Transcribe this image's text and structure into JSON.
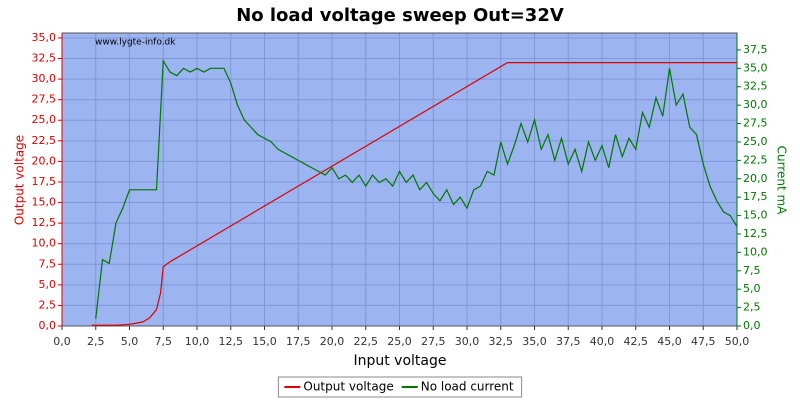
{
  "chart_data": {
    "type": "line",
    "title": "No load voltage sweep Out=32V",
    "watermark": "www.lygte-info.dk",
    "x_label": "Input voltage",
    "y_label": "Output voltage",
    "y2_label": "Current mA",
    "xlim": [
      0,
      50
    ],
    "ylim": [
      0,
      35.6
    ],
    "y2lim": [
      0,
      39.8
    ],
    "grid": true,
    "legend": "bottom",
    "xticks": [
      {
        "value": 0,
        "label": "0,0"
      },
      {
        "value": 2.5,
        "label": "2,5"
      },
      {
        "value": 5,
        "label": "5,0"
      },
      {
        "value": 7.5,
        "label": "7,5"
      },
      {
        "value": 10,
        "label": "10,0"
      },
      {
        "value": 12.5,
        "label": "12,5"
      },
      {
        "value": 15,
        "label": "15,0"
      },
      {
        "value": 17.5,
        "label": "17,5"
      },
      {
        "value": 20,
        "label": "20,0"
      },
      {
        "value": 22.5,
        "label": "22,5"
      },
      {
        "value": 25,
        "label": "25,0"
      },
      {
        "value": 27.5,
        "label": "27,5"
      },
      {
        "value": 30,
        "label": "30,0"
      },
      {
        "value": 32.5,
        "label": "32,5"
      },
      {
        "value": 35,
        "label": "35,0"
      },
      {
        "value": 37.5,
        "label": "37,5"
      },
      {
        "value": 40,
        "label": "40,0"
      },
      {
        "value": 42.5,
        "label": "42,5"
      },
      {
        "value": 45,
        "label": "45,0"
      },
      {
        "value": 47.5,
        "label": "47,5"
      },
      {
        "value": 50,
        "label": "50,0"
      }
    ],
    "yticks": [
      {
        "value": 0,
        "label": "0,0"
      },
      {
        "value": 2.5,
        "label": "2,5"
      },
      {
        "value": 5,
        "label": "5,0"
      },
      {
        "value": 7.5,
        "label": "7,5"
      },
      {
        "value": 10,
        "label": "10,0"
      },
      {
        "value": 12.5,
        "label": "12,5"
      },
      {
        "value": 15,
        "label": "15,0"
      },
      {
        "value": 17.5,
        "label": "17,5"
      },
      {
        "value": 20,
        "label": "20,0"
      },
      {
        "value": 22.5,
        "label": "22,5"
      },
      {
        "value": 25,
        "label": "25,0"
      },
      {
        "value": 27.5,
        "label": "27,5"
      },
      {
        "value": 30,
        "label": "30,0"
      },
      {
        "value": 32.5,
        "label": "32,5"
      },
      {
        "value": 35,
        "label": "35,0"
      }
    ],
    "y2ticks": [
      {
        "value": 0,
        "label": "0,0"
      },
      {
        "value": 2.5,
        "label": "2,5"
      },
      {
        "value": 5,
        "label": "5,0"
      },
      {
        "value": 7.5,
        "label": "7,5"
      },
      {
        "value": 10,
        "label": "10,0"
      },
      {
        "value": 12.5,
        "label": "12,5"
      },
      {
        "value": 15,
        "label": "15,0"
      },
      {
        "value": 17.5,
        "label": "17,5"
      },
      {
        "value": 20,
        "label": "20,0"
      },
      {
        "value": 22.5,
        "label": "22,5"
      },
      {
        "value": 25,
        "label": "25,0"
      },
      {
        "value": 27.5,
        "label": "27,5"
      },
      {
        "value": 30,
        "label": "30,0"
      },
      {
        "value": 32.5,
        "label": "32,5"
      },
      {
        "value": 35,
        "label": "35,0"
      },
      {
        "value": 37.5,
        "label": "37,5"
      }
    ],
    "series": [
      {
        "name": "Output voltage",
        "color": "#dd0000",
        "x": [
          2.2,
          4,
          5,
          6,
          6.5,
          7,
          7.3,
          7.5,
          8,
          33,
          50
        ],
        "values": [
          0.1,
          0.1,
          0.2,
          0.5,
          1,
          2,
          4,
          7.2,
          7.8,
          32,
          32
        ]
      },
      {
        "name": "No load current",
        "color": "#007700",
        "axis": "y2",
        "x": [
          2.5,
          3,
          3.5,
          4,
          4.5,
          5,
          5.5,
          6,
          6.5,
          7,
          7.5,
          8,
          8.5,
          9,
          9.5,
          10,
          10.5,
          11,
          11.5,
          12,
          12.5,
          13,
          13.5,
          14,
          14.5,
          15,
          15.5,
          16,
          16.5,
          17,
          17.5,
          18,
          18.5,
          19,
          19.5,
          20,
          20.5,
          21,
          21.5,
          22,
          22.5,
          23,
          23.5,
          24,
          24.5,
          25,
          25.5,
          26,
          26.5,
          27,
          27.5,
          28,
          28.5,
          29,
          29.5,
          30,
          30.5,
          31,
          31.5,
          32,
          32.5,
          33,
          33.5,
          34,
          34.5,
          35,
          35.5,
          36,
          36.5,
          37,
          37.5,
          38,
          38.5,
          39,
          39.5,
          40,
          40.5,
          41,
          41.5,
          42,
          42.5,
          43,
          43.5,
          44,
          44.5,
          45,
          45.5,
          46,
          46.5,
          47,
          47.5,
          48,
          48.5,
          49,
          49.5,
          50
        ],
        "values": [
          1.0,
          9.0,
          8.5,
          14.0,
          16.0,
          18.5,
          18.5,
          18.5,
          18.5,
          18.5,
          36.0,
          34.5,
          34.0,
          35.0,
          34.5,
          35.0,
          34.5,
          35.0,
          35.0,
          35.0,
          33.0,
          30.0,
          28.0,
          27.0,
          26.0,
          25.5,
          25.0,
          24.0,
          23.5,
          23.0,
          22.5,
          22.0,
          21.5,
          21.0,
          20.5,
          21.5,
          20.0,
          20.5,
          19.5,
          20.5,
          19.0,
          20.5,
          19.5,
          20.0,
          19.0,
          21.0,
          19.5,
          20.5,
          18.5,
          19.5,
          18.0,
          17.0,
          18.5,
          16.5,
          17.5,
          16.0,
          18.5,
          19.0,
          21.0,
          20.5,
          25.0,
          22.0,
          24.5,
          27.5,
          25.0,
          28.0,
          24.0,
          26.0,
          22.5,
          25.5,
          22.0,
          24.0,
          21.0,
          25.0,
          22.5,
          24.5,
          21.5,
          26.0,
          23.0,
          25.5,
          24.0,
          29.0,
          27.0,
          31.0,
          28.5,
          35.0,
          30.0,
          31.5,
          27.0,
          26.0,
          22.0,
          19.0,
          17.0,
          15.5,
          15.0,
          13.5
        ]
      }
    ]
  }
}
